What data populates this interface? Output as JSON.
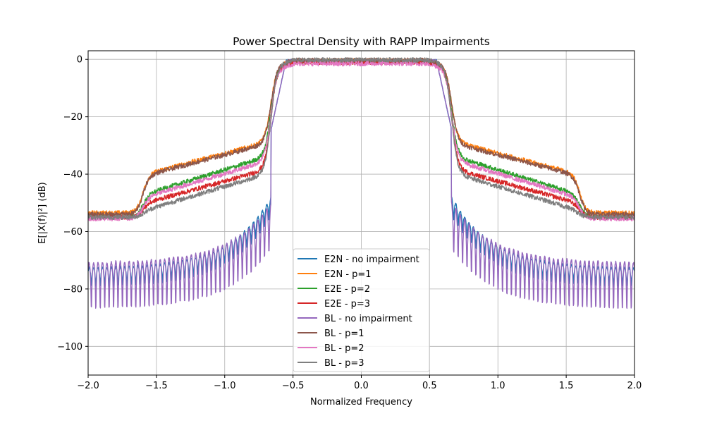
{
  "chart_data": {
    "type": "line",
    "title": "Power Spectral Density with RAPP Impairments",
    "xlabel": "Normalized Frequency",
    "ylabel": "E[|X(f)|²] (dB)",
    "xlim": [
      -2.0,
      2.0
    ],
    "ylim": [
      -110,
      3
    ],
    "xticks": [
      -2.0,
      -1.5,
      -1.0,
      -0.5,
      0.0,
      0.5,
      1.0,
      1.5,
      2.0
    ],
    "xtick_labels": [
      "−2.0",
      "−1.5",
      "−1.0",
      "−0.5",
      "0.0",
      "0.5",
      "1.0",
      "1.5",
      "2.0"
    ],
    "yticks": [
      0,
      -20,
      -40,
      -60,
      -80,
      -100
    ],
    "ytick_labels": [
      "0",
      "−20",
      "−40",
      "−60",
      "−80",
      "−100"
    ],
    "grid": true,
    "legend_position": "bottom-center",
    "series": [
      {
        "name": "E2N - no impairment",
        "color": "#1f77b4",
        "kind": "sidelobe",
        "envelope_at_edge": -48,
        "envelope_far": -73,
        "depth": 12
      },
      {
        "name": "E2N - p=1",
        "color": "#ff7f0e",
        "kind": "regrowth",
        "passband_db": -0.5,
        "shoulder_db": -28.5,
        "shoulder_slope_db": 11.5,
        "outer_db": -53.5
      },
      {
        "name": "E2E - p=2",
        "color": "#2ca02c",
        "kind": "regrowth",
        "passband_db": -0.8,
        "shoulder_db": -33.5,
        "shoulder_slope_db": 13.5,
        "outer_db": -55
      },
      {
        "name": "E2E - p=3",
        "color": "#d62728",
        "kind": "regrowth",
        "passband_db": -1.0,
        "shoulder_db": -38,
        "shoulder_slope_db": 12,
        "outer_db": -55
      },
      {
        "name": "BL - no impairment",
        "color": "#9467bd",
        "kind": "sidelobe",
        "envelope_at_edge": -50,
        "envelope_far": -71,
        "depth": 30
      },
      {
        "name": "BL - p=1",
        "color": "#8c564b",
        "kind": "regrowth",
        "passband_db": -0.3,
        "shoulder_db": -29,
        "shoulder_slope_db": 11.5,
        "outer_db": -54
      },
      {
        "name": "BL - p=2",
        "color": "#e377c2",
        "kind": "regrowth",
        "passband_db": -1.5,
        "shoulder_db": -35,
        "shoulder_slope_db": 13,
        "outer_db": -55.5
      },
      {
        "name": "BL - p=3",
        "color": "#7f7f7f",
        "kind": "regrowth",
        "passband_db": -0.2,
        "shoulder_db": -39.5,
        "shoulder_slope_db": 13,
        "outer_db": -55
      }
    ]
  }
}
